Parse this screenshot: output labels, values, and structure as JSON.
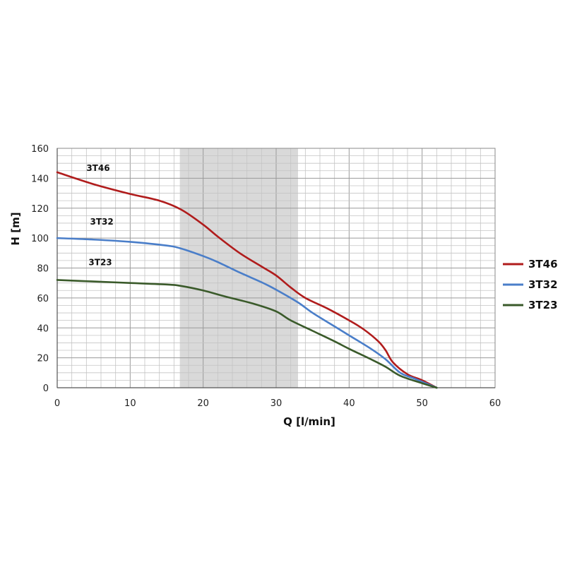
{
  "chart_data": {
    "type": "line",
    "title": "",
    "xlabel": "Q [l/min]",
    "ylabel": "H [m]",
    "xlim": [
      0,
      60
    ],
    "ylim": [
      0,
      160
    ],
    "x_ticks": [
      0,
      10,
      20,
      30,
      40,
      50,
      60
    ],
    "y_ticks": [
      0,
      20,
      40,
      60,
      80,
      100,
      120,
      140,
      160
    ],
    "minor_grid": {
      "x_step": 2,
      "y_step": 5
    },
    "grid": true,
    "shaded_region": {
      "x": [
        16.8,
        33
      ],
      "color": "#d9d9d9"
    },
    "legend_position": "right",
    "series": [
      {
        "name": "3T46",
        "color": "#b01c1c",
        "label_at": [
          4,
          145
        ],
        "points": [
          [
            0,
            144
          ],
          [
            5,
            136
          ],
          [
            10,
            129.5
          ],
          [
            14,
            125
          ],
          [
            17,
            119
          ],
          [
            20,
            109
          ],
          [
            22,
            101
          ],
          [
            25,
            90
          ],
          [
            28,
            81
          ],
          [
            30,
            75
          ],
          [
            32,
            67
          ],
          [
            34,
            60
          ],
          [
            37,
            53
          ],
          [
            40,
            45
          ],
          [
            42,
            39
          ],
          [
            44,
            31
          ],
          [
            45,
            25
          ],
          [
            46,
            17
          ],
          [
            48,
            9
          ],
          [
            50,
            5
          ],
          [
            52,
            0
          ]
        ]
      },
      {
        "name": "3T32",
        "color": "#4a7ec9",
        "label_at": [
          4.5,
          109
        ],
        "points": [
          [
            0,
            100
          ],
          [
            5,
            99
          ],
          [
            10,
            97.5
          ],
          [
            15,
            95
          ],
          [
            17,
            93
          ],
          [
            20,
            88
          ],
          [
            22,
            84
          ],
          [
            25,
            77
          ],
          [
            28,
            70.5
          ],
          [
            30,
            65.5
          ],
          [
            33,
            57
          ],
          [
            35,
            50
          ],
          [
            38,
            41
          ],
          [
            40,
            35
          ],
          [
            43,
            26
          ],
          [
            45,
            19
          ],
          [
            47,
            10
          ],
          [
            49,
            6
          ],
          [
            52,
            0
          ]
        ]
      },
      {
        "name": "3T23",
        "color": "#3a5a2a",
        "label_at": [
          4.3,
          82
        ],
        "points": [
          [
            0,
            72
          ],
          [
            5,
            71
          ],
          [
            10,
            70
          ],
          [
            15,
            69
          ],
          [
            17,
            68
          ],
          [
            20,
            65
          ],
          [
            23,
            61
          ],
          [
            27,
            56
          ],
          [
            30,
            51
          ],
          [
            32,
            45
          ],
          [
            35,
            38
          ],
          [
            38,
            31
          ],
          [
            40,
            26
          ],
          [
            43,
            19
          ],
          [
            45,
            14
          ],
          [
            47,
            8
          ],
          [
            50,
            3
          ],
          [
            52,
            0
          ]
        ]
      }
    ]
  }
}
